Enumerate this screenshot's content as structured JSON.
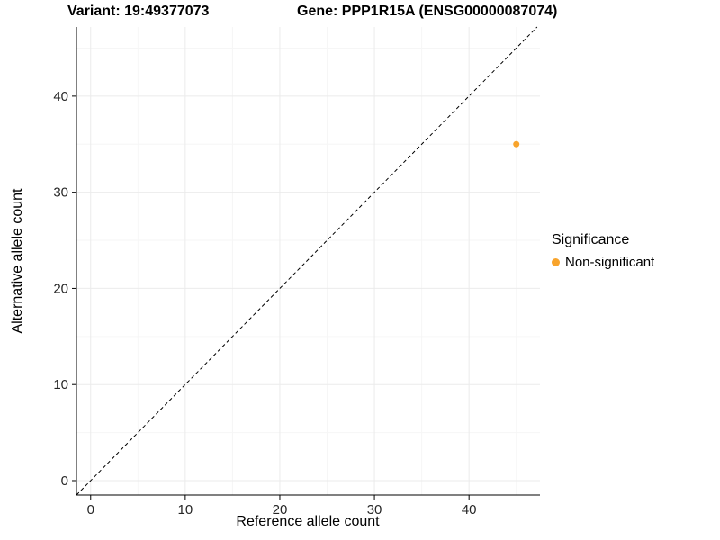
{
  "chart_data": {
    "type": "scatter",
    "title_left": "Variant: 19:49377073",
    "title_right": "Gene: PPP1R15A (ENSG00000087074)",
    "xlabel": "Reference allele count",
    "ylabel": "Alternative allele count",
    "xticks": [
      0,
      10,
      20,
      30,
      40
    ],
    "yticks": [
      0,
      10,
      20,
      30,
      40
    ],
    "xlim": [
      -1.5,
      47.5
    ],
    "ylim": [
      -1.5,
      47.2
    ],
    "grid": true,
    "identity_line": {
      "style": "dashed",
      "slope": 1,
      "intercept": 0,
      "color": "#000000"
    },
    "points": [
      {
        "x": 45,
        "y": 35,
        "series": "Non-significant"
      }
    ],
    "legend": {
      "title": "Significance",
      "position": "right",
      "items": [
        {
          "label": "Non-significant",
          "color": "#F8A42C"
        }
      ]
    }
  },
  "colors": {
    "grid_major": "#ebebeb",
    "grid_minor": "#f6f6f6",
    "axis": "#000000",
    "tick_label": "#262626"
  }
}
